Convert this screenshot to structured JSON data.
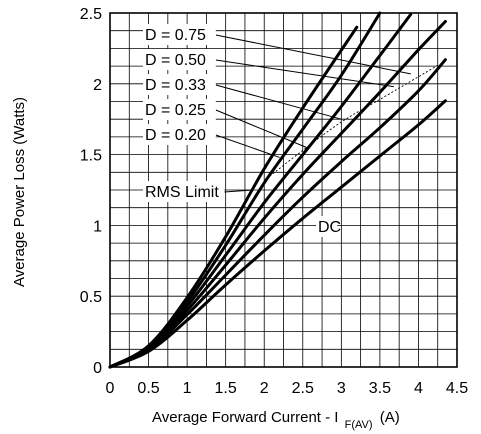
{
  "chart_data": {
    "type": "line",
    "title": "",
    "xlabel": "Average Forward Current - I",
    "xlabel_subscript": "F(AV)",
    "xlabel_unit": "(A)",
    "ylabel": "Average Power Loss  (Watts)",
    "xlim": [
      0,
      4.5
    ],
    "ylim": [
      0,
      2.5
    ],
    "x_ticks": [
      "0",
      "0.5",
      "1",
      "1.5",
      "2",
      "2.5",
      "3",
      "3.5",
      "4",
      "4.5"
    ],
    "y_ticks": [
      "0",
      "0.5",
      "1",
      "1.5",
      "2",
      "2.5"
    ],
    "grid": true,
    "series": [
      {
        "name": "D = 0.75",
        "x": [
          0,
          0.5,
          1,
          1.5,
          2,
          2.5,
          3.2
        ],
        "y": [
          0,
          0.15,
          0.49,
          0.92,
          1.4,
          1.83,
          2.4
        ]
      },
      {
        "name": "D = 0.50",
        "x": [
          0,
          0.5,
          1,
          1.5,
          2,
          2.5,
          3,
          3.5
        ],
        "y": [
          0,
          0.14,
          0.46,
          0.86,
          1.3,
          1.68,
          2.06,
          2.5
        ]
      },
      {
        "name": "D = 0.33",
        "x": [
          0,
          0.5,
          1,
          1.5,
          2,
          2.5,
          3,
          3.5,
          3.9
        ],
        "y": [
          0,
          0.14,
          0.43,
          0.79,
          1.16,
          1.5,
          1.84,
          2.2,
          2.49
        ]
      },
      {
        "name": "D = 0.25",
        "x": [
          0,
          0.5,
          1,
          1.5,
          2,
          2.5,
          3,
          3.5,
          4,
          4.35
        ],
        "y": [
          0,
          0.13,
          0.4,
          0.72,
          1.05,
          1.36,
          1.65,
          1.94,
          2.24,
          2.44
        ]
      },
      {
        "name": "D = 0.20",
        "x": [
          0,
          0.5,
          1,
          1.5,
          2,
          2.5,
          3,
          3.5,
          4,
          4.35
        ],
        "y": [
          0,
          0.12,
          0.37,
          0.65,
          0.93,
          1.2,
          1.45,
          1.69,
          1.95,
          2.17
        ]
      },
      {
        "name": "DC",
        "x": [
          0,
          0.5,
          1,
          1.5,
          2,
          2.5,
          3,
          3.5,
          4,
          4.35
        ],
        "y": [
          0,
          0.11,
          0.33,
          0.58,
          0.82,
          1.05,
          1.27,
          1.49,
          1.71,
          1.88
        ]
      }
    ],
    "rms_limit": {
      "name": "RMS Limit",
      "x": [
        2.03,
        2.5,
        3,
        3.5,
        4.25
      ],
      "y": [
        1.33,
        1.53,
        1.73,
        1.89,
        2.13
      ]
    },
    "annotations": [
      {
        "text": "D = 0.75",
        "points_to": [
          3.9,
          2.07
        ]
      },
      {
        "text": "D = 0.50",
        "points_to": [
          3.68,
          1.98
        ]
      },
      {
        "text": "D = 0.33",
        "points_to": [
          3.0,
          1.75
        ]
      },
      {
        "text": "D = 0.25",
        "points_to": [
          2.55,
          1.55
        ]
      },
      {
        "text": "D = 0.20",
        "points_to": [
          2.2,
          1.48
        ]
      },
      {
        "text": "RMS Limit",
        "points_to": [
          1.85,
          1.25
        ]
      },
      {
        "text": "DC",
        "points_to": [
          2.7,
          1.0
        ]
      }
    ]
  }
}
